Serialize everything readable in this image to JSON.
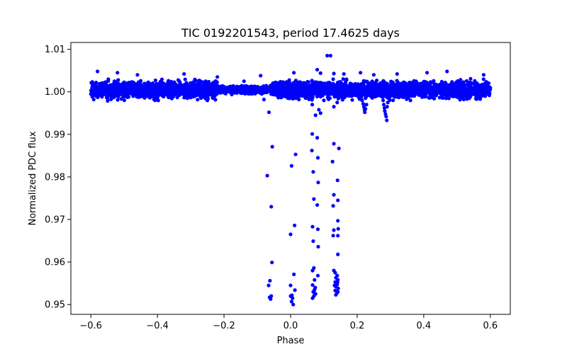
{
  "chart_data": {
    "type": "scatter",
    "title": "TIC 0192201543, period 17.4625 days",
    "xlabel": "Phase",
    "ylabel": "Normalized PDC flux",
    "xlim": [
      -0.66,
      0.66
    ],
    "ylim": [
      0.9477,
      1.0116
    ],
    "x_ticks": [
      -0.6,
      -0.4,
      -0.2,
      0.0,
      0.2,
      0.4,
      0.6
    ],
    "x_tick_labels": [
      "−0.6",
      "−0.4",
      "−0.2",
      "0.0",
      "0.2",
      "0.4",
      "0.6"
    ],
    "y_ticks": [
      0.95,
      0.96,
      0.97,
      0.98,
      0.99,
      1.0,
      1.01
    ],
    "y_tick_labels": [
      "0.95",
      "0.96",
      "0.97",
      "0.98",
      "0.99",
      "1.00",
      "1.01"
    ],
    "grid": false,
    "marker_color": "#0000ff",
    "series": [
      {
        "name": "PDC flux",
        "baseline_band": {
          "x_range": [
            -0.6,
            0.6
          ],
          "y_range": [
            0.9985,
            1.0025
          ]
        },
        "points": [
          [
            -0.58,
            1.0048
          ],
          [
            -0.55,
            0.9985
          ],
          [
            -0.52,
            1.0045
          ],
          [
            -0.46,
            1.004
          ],
          [
            -0.4,
            0.9983
          ],
          [
            -0.32,
            1.0042
          ],
          [
            -0.25,
            0.998
          ],
          [
            -0.22,
            1.0035
          ],
          [
            -0.14,
            1.0025
          ],
          [
            -0.09,
            1.0038
          ],
          [
            -0.08,
            0.9982
          ],
          [
            0.01,
            1.0045
          ],
          [
            0.02,
            0.9985
          ],
          [
            0.05,
            0.999
          ],
          [
            0.08,
            1.0052
          ],
          [
            0.09,
            1.0044
          ],
          [
            0.11,
            1.0085
          ],
          [
            0.12,
            1.0085
          ],
          [
            0.13,
            1.0043
          ],
          [
            0.16,
            1.0042
          ],
          [
            0.21,
            1.0045
          ],
          [
            0.25,
            1.004
          ],
          [
            0.32,
            1.0042
          ],
          [
            0.36,
            0.998
          ],
          [
            0.41,
            1.0045
          ],
          [
            0.47,
            1.0048
          ],
          [
            0.52,
            0.9982
          ],
          [
            0.58,
            1.004
          ],
          [
            0.215,
            0.9995
          ],
          [
            0.215,
            0.998
          ],
          [
            0.218,
            0.9972
          ],
          [
            0.22,
            0.9965
          ],
          [
            0.222,
            0.9958
          ],
          [
            0.223,
            0.9952
          ],
          [
            0.225,
            0.996
          ],
          [
            0.228,
            0.997
          ],
          [
            0.225,
            0.9985
          ],
          [
            0.275,
            0.9995
          ],
          [
            0.278,
            0.998
          ],
          [
            0.28,
            0.997
          ],
          [
            0.282,
            0.9962
          ],
          [
            0.283,
            0.9955
          ],
          [
            0.285,
            0.9948
          ],
          [
            0.287,
            0.9942
          ],
          [
            0.289,
            0.9933
          ],
          [
            0.29,
            0.9965
          ],
          [
            0.292,
            0.9975
          ],
          [
            0.06,
            0.9985
          ],
          [
            0.065,
            0.997
          ],
          [
            0.085,
            0.9958
          ],
          [
            0.09,
            0.995
          ],
          [
            0.1,
            0.998
          ],
          [
            0.075,
            0.9945
          ],
          [
            0.13,
            0.9965
          ],
          [
            0.14,
            0.9975
          ],
          [
            -0.065,
            0.9952
          ],
          [
            -0.07,
            0.9803
          ],
          [
            -0.055,
            0.9871
          ],
          [
            -0.058,
            0.973
          ],
          [
            -0.056,
            0.9599
          ],
          [
            -0.062,
            0.9556
          ],
          [
            -0.066,
            0.9545
          ],
          [
            -0.063,
            0.9517
          ],
          [
            -0.06,
            0.9513
          ],
          [
            -0.058,
            0.952
          ],
          [
            0.003,
            0.9826
          ],
          [
            0.015,
            0.9853
          ],
          [
            0.0,
            0.9665
          ],
          [
            0.012,
            0.9686
          ],
          [
            0.01,
            0.9571
          ],
          [
            0.0,
            0.9545
          ],
          [
            0.004,
            0.9522
          ],
          [
            0.006,
            0.9515
          ],
          [
            0.003,
            0.9507
          ],
          [
            0.008,
            0.95
          ],
          [
            0.013,
            0.9534
          ],
          [
            0.0,
            0.952
          ],
          [
            0.065,
            0.9901
          ],
          [
            0.08,
            0.9892
          ],
          [
            0.064,
            0.9862
          ],
          [
            0.082,
            0.9845
          ],
          [
            0.068,
            0.9812
          ],
          [
            0.083,
            0.9787
          ],
          [
            0.07,
            0.9748
          ],
          [
            0.08,
            0.9734
          ],
          [
            0.066,
            0.9683
          ],
          [
            0.082,
            0.9677
          ],
          [
            0.068,
            0.9649
          ],
          [
            0.083,
            0.9636
          ],
          [
            0.07,
            0.9586
          ],
          [
            0.066,
            0.958
          ],
          [
            0.082,
            0.9568
          ],
          [
            0.072,
            0.9558
          ],
          [
            0.066,
            0.9546
          ],
          [
            0.074,
            0.954
          ],
          [
            0.072,
            0.9535
          ],
          [
            0.068,
            0.953
          ],
          [
            0.075,
            0.9525
          ],
          [
            0.07,
            0.952
          ],
          [
            0.066,
            0.9515
          ],
          [
            0.071,
            0.9528
          ],
          [
            0.13,
            0.9878
          ],
          [
            0.145,
            0.9867
          ],
          [
            0.126,
            0.9836
          ],
          [
            0.141,
            0.9792
          ],
          [
            0.13,
            0.9758
          ],
          [
            0.142,
            0.9745
          ],
          [
            0.128,
            0.9732
          ],
          [
            0.142,
            0.9697
          ],
          [
            0.13,
            0.9675
          ],
          [
            0.143,
            0.9678
          ],
          [
            0.128,
            0.9662
          ],
          [
            0.142,
            0.9662
          ],
          [
            0.13,
            0.958
          ],
          [
            0.142,
            0.9618
          ],
          [
            0.134,
            0.9575
          ],
          [
            0.14,
            0.9568
          ],
          [
            0.136,
            0.9563
          ],
          [
            0.142,
            0.9558
          ],
          [
            0.134,
            0.9553
          ],
          [
            0.14,
            0.9547
          ],
          [
            0.136,
            0.9542
          ],
          [
            0.143,
            0.9538
          ],
          [
            0.134,
            0.9533
          ],
          [
            0.14,
            0.9528
          ],
          [
            0.136,
            0.9523
          ],
          [
            0.142,
            0.953
          ],
          [
            0.132,
            0.9545
          ],
          [
            0.141,
            0.9552
          ]
        ]
      }
    ]
  }
}
